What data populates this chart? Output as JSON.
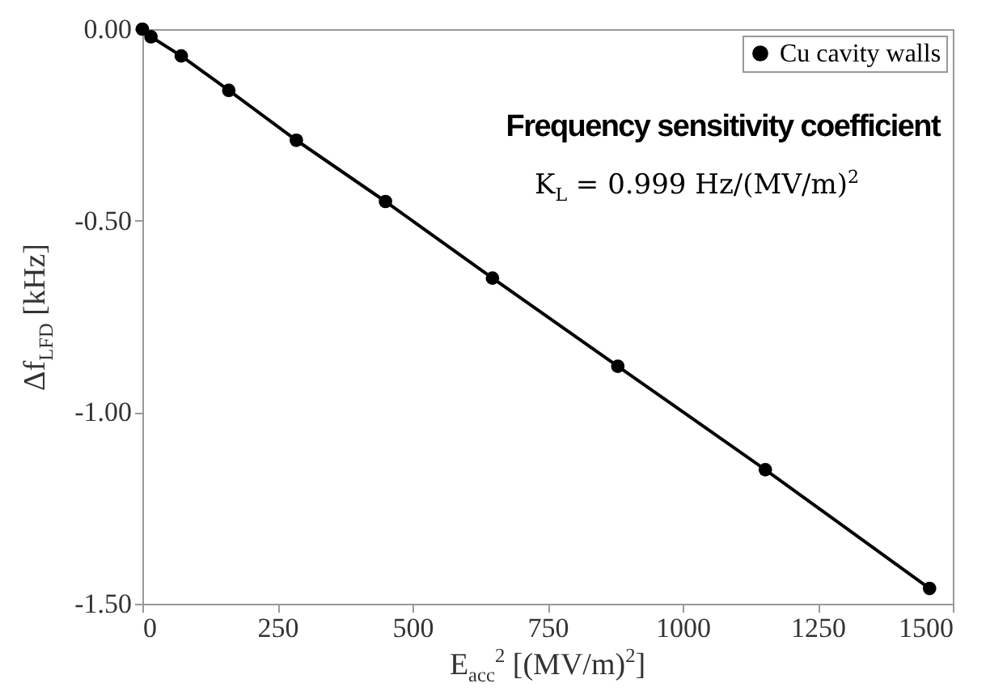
{
  "chart_data": {
    "type": "line",
    "xlabel": "E$_{acc}$$^{2}$ [(MV/m)$^{2}$]",
    "ylabel": "Δf$_{LFD}$ [kHz]",
    "annotations": [
      "Frequency sensitivity coefficient",
      "K$_{L}$ = 0.999 Hz/(MV/m)$^{2}$"
    ],
    "x": [
      0,
      16,
      72,
      160,
      285,
      450,
      648,
      880,
      1153,
      1457
    ],
    "series": [
      {
        "name": "Cu cavity walls",
        "color": "#000000",
        "values": [
          0,
          -0.02,
          -0.07,
          -0.16,
          -0.29,
          -0.45,
          -0.65,
          -0.88,
          -1.15,
          -1.46
        ]
      }
    ],
    "xlim": [
      0,
      1500
    ],
    "xticks": [
      0,
      250,
      500,
      750,
      1000,
      1250,
      1500
    ],
    "ylim": [
      -1.5,
      0
    ],
    "yticks": [
      {
        "value": 0,
        "label": "0.00"
      },
      {
        "value": -0.5,
        "label": "-0.50"
      },
      {
        "value": -1,
        "label": "-1.00"
      },
      {
        "value": -1.5,
        "label": "-1.50"
      }
    ],
    "legend": "top right",
    "marker": "circle"
  }
}
